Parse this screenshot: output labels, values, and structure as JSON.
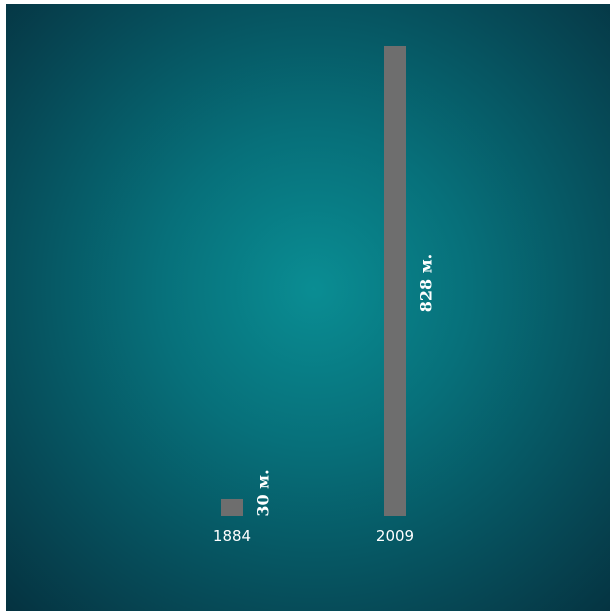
{
  "chart_data": {
    "type": "bar",
    "categories": [
      "1884",
      "2009"
    ],
    "values": [
      30,
      828
    ],
    "value_labels": [
      "30 м.",
      "828 м."
    ],
    "title": "",
    "xlabel": "",
    "ylabel": "",
    "ylim": [
      0,
      828
    ],
    "grid": false,
    "legend": "none",
    "colors": {
      "bar": "#6e6e6e",
      "text": "#ffffff",
      "background_center": "#0a8d93",
      "background_edge": "#053240"
    }
  }
}
